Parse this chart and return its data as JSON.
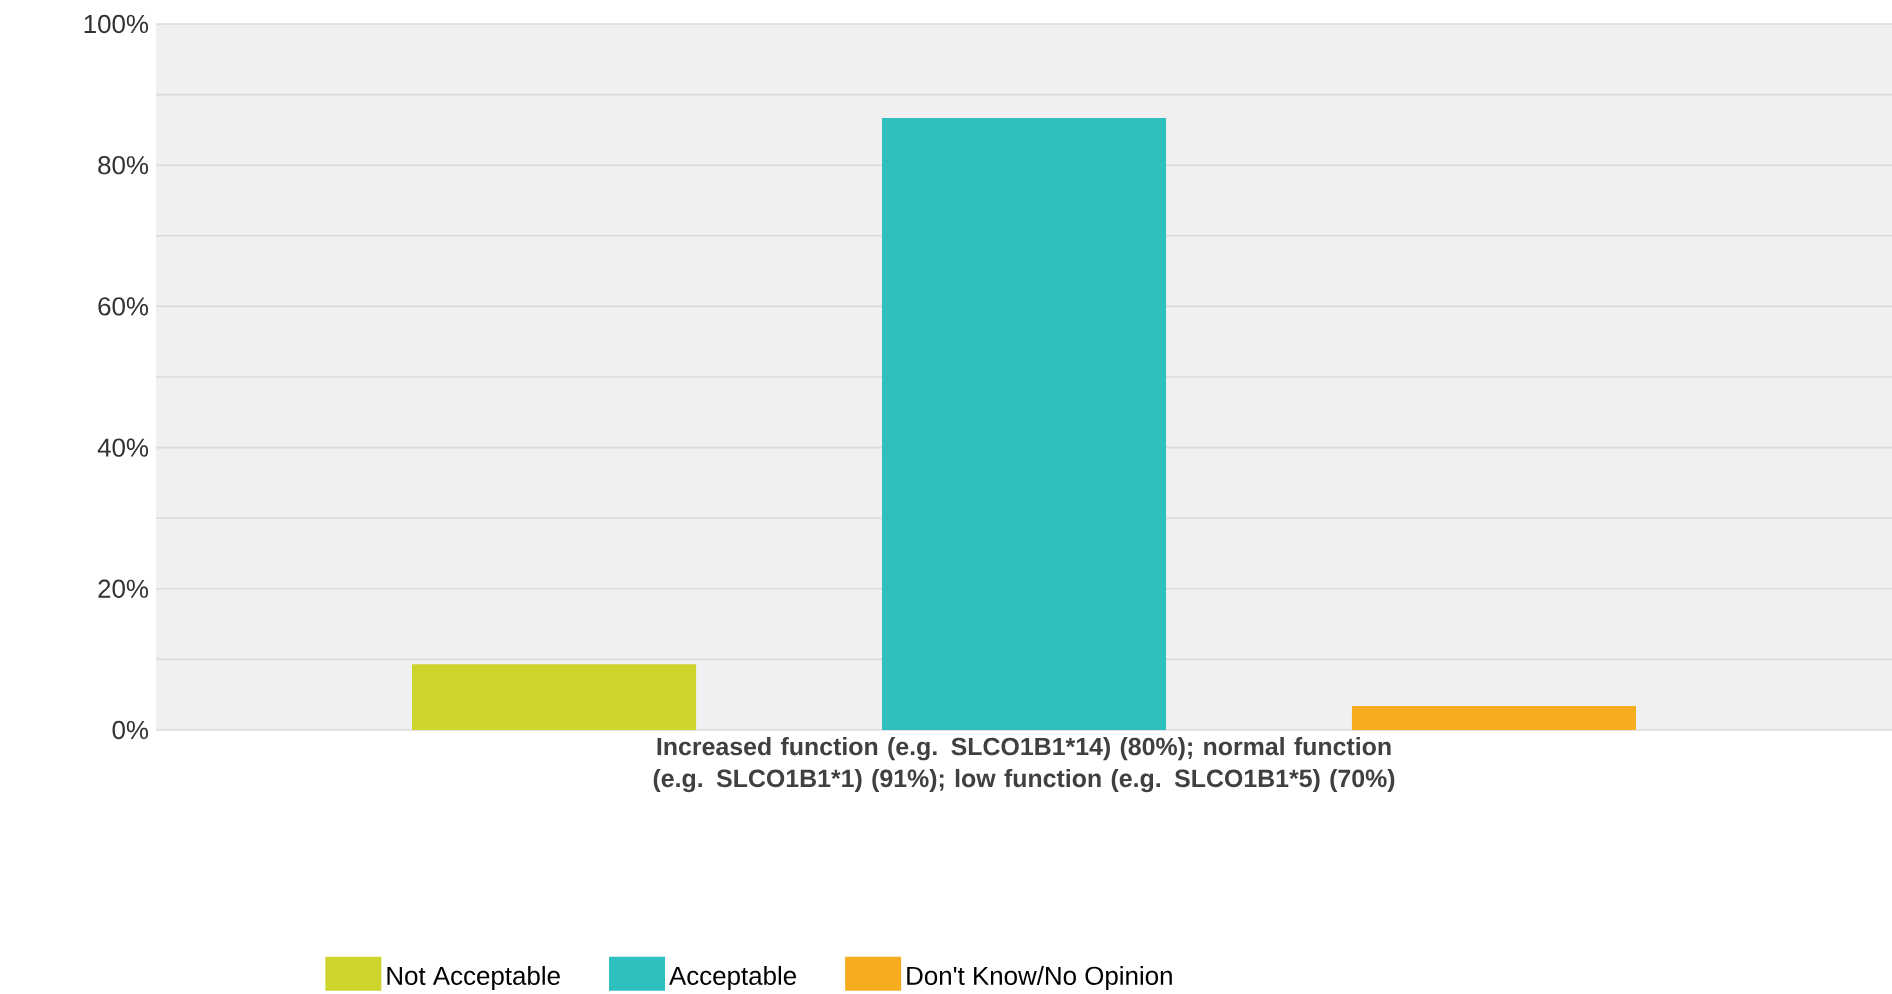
{
  "chart_data": {
    "type": "bar",
    "categories": [
      "Increased function (e.g. SLCO1B1*14) (80%); normal function (e.g. SLCO1B1*1) (91%); low function (e.g. SLCO1B1*5) (70%)"
    ],
    "series": [
      {
        "name": "Not Acceptable",
        "color": "#cdd52c",
        "values": [
          9.3
        ]
      },
      {
        "name": "Acceptable",
        "color": "#30bfbf",
        "values": [
          86.7
        ]
      },
      {
        "name": "Don't Know/No Opinion",
        "color": "#f5ad1f",
        "values": [
          3.4
        ]
      }
    ],
    "ylim": [
      0,
      100
    ],
    "yticks": [
      {
        "value": 0,
        "label": "0%"
      },
      {
        "value": 10,
        "label": null
      },
      {
        "value": 20,
        "label": "20%"
      },
      {
        "value": 30,
        "label": null
      },
      {
        "value": 40,
        "label": "40%"
      },
      {
        "value": 50,
        "label": null
      },
      {
        "value": 60,
        "label": "60%"
      },
      {
        "value": 70,
        "label": null
      },
      {
        "value": 80,
        "label": "80%"
      },
      {
        "value": 90,
        "label": null
      },
      {
        "value": 100,
        "label": "100%"
      }
    ],
    "grid": "y",
    "legend": "bottom"
  }
}
